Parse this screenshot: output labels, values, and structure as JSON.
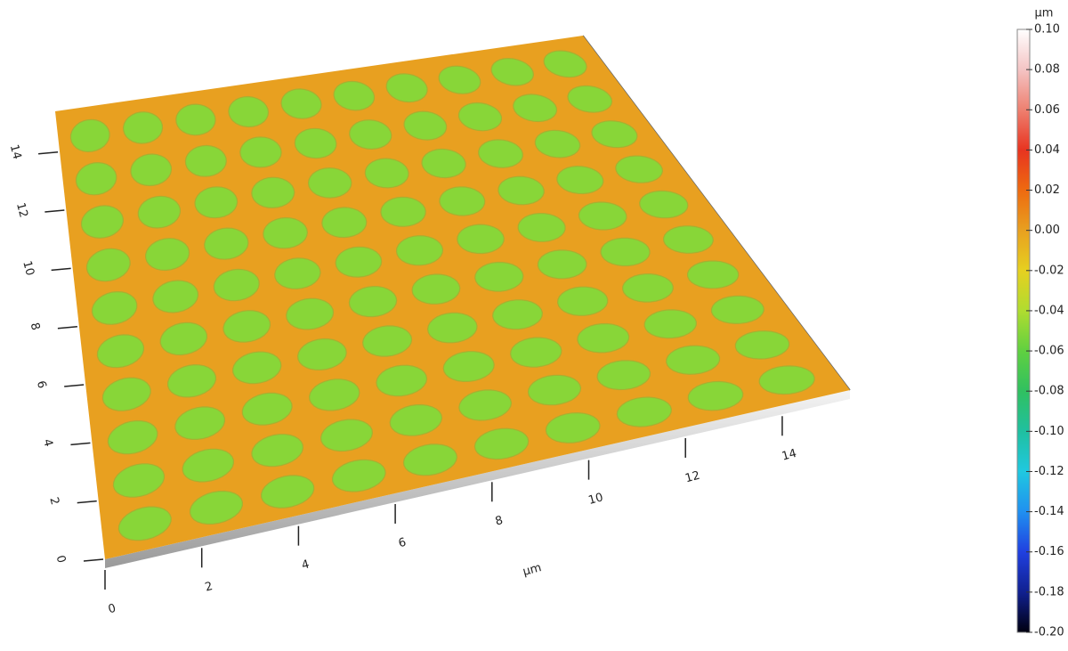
{
  "chart_data": {
    "type": "surface3d",
    "x_label": "µm",
    "xlim": [
      0,
      15.4
    ],
    "xticks": [
      0,
      2,
      4,
      6,
      8,
      10,
      12,
      14
    ],
    "ylim": [
      0,
      15.4
    ],
    "yticks": [
      0,
      2,
      4,
      6,
      8,
      10,
      12,
      14
    ],
    "surface_height": 0,
    "well_depth": -0.05,
    "well_centers_x": [
      0.9,
      2.4,
      3.9,
      5.4,
      6.9,
      8.4,
      9.9,
      11.4,
      12.9,
      14.4
    ],
    "well_centers_y": [
      0.9,
      2.4,
      3.9,
      5.4,
      6.9,
      8.4,
      9.9,
      11.4,
      12.9,
      14.4
    ],
    "colorbar": {
      "label": "µm",
      "lim": [
        -0.2,
        0.1
      ],
      "ticks": [
        {
          "value": 0.1,
          "label": "0.10"
        },
        {
          "value": 0.08,
          "label": "0.08"
        },
        {
          "value": 0.06,
          "label": "0.06"
        },
        {
          "value": 0.04,
          "label": "0.04"
        },
        {
          "value": 0.02,
          "label": "0.02"
        },
        {
          "value": 0,
          "label": "0.00"
        },
        {
          "value": -0.02,
          "label": "-0.02"
        },
        {
          "value": -0.04,
          "label": "-0.04"
        },
        {
          "value": -0.06,
          "label": "-0.06"
        },
        {
          "value": -0.08,
          "label": "-0.08"
        },
        {
          "value": -0.1,
          "label": "-0.10"
        },
        {
          "value": -0.12,
          "label": "-0.12"
        },
        {
          "value": -0.14,
          "label": "-0.14"
        },
        {
          "value": -0.16,
          "label": "-0.16"
        },
        {
          "value": -0.18,
          "label": "-0.18"
        },
        {
          "value": -0.2,
          "label": "-0.20"
        }
      ],
      "colormap": [
        {
          "value": 0.1,
          "color": "#ffffff"
        },
        {
          "value": 0.08,
          "color": "#f4c4c4"
        },
        {
          "value": 0.06,
          "color": "#ee8070"
        },
        {
          "value": 0.04,
          "color": "#e83420"
        },
        {
          "value": 0.02,
          "color": "#ee6a10"
        },
        {
          "value": 0,
          "color": "#e8a020"
        },
        {
          "value": -0.02,
          "color": "#e6d020"
        },
        {
          "value": -0.04,
          "color": "#b0dc30"
        },
        {
          "value": -0.06,
          "color": "#60d040"
        },
        {
          "value": -0.08,
          "color": "#30c060"
        },
        {
          "value": -0.1,
          "color": "#20c0a0"
        },
        {
          "value": -0.12,
          "color": "#20c8e0"
        },
        {
          "value": -0.14,
          "color": "#2090f0"
        },
        {
          "value": -0.16,
          "color": "#2040e0"
        },
        {
          "value": -0.18,
          "color": "#102090"
        },
        {
          "value": -0.2,
          "color": "#000010"
        }
      ]
    }
  }
}
